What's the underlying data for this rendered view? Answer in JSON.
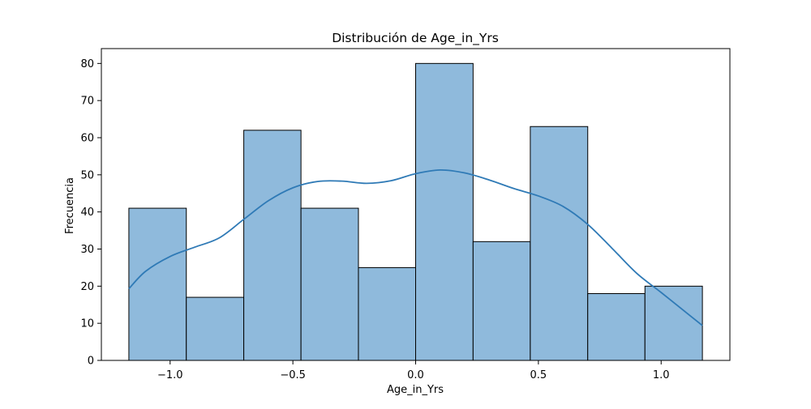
{
  "chart_data": {
    "type": "bar",
    "title": "Distribución de Age_in_Yrs",
    "xlabel": "Age_in_Yrs",
    "ylabel": "Frecuencia",
    "xlim": [
      -1.28,
      1.28
    ],
    "ylim": [
      0,
      84
    ],
    "x_ticks": [
      -1.0,
      -0.5,
      0.0,
      0.5,
      1.0
    ],
    "x_tick_labels": [
      "−1.0",
      "−0.5",
      "0.0",
      "0.5",
      "1.0"
    ],
    "y_ticks": [
      0,
      10,
      20,
      30,
      40,
      50,
      60,
      70,
      80
    ],
    "y_tick_labels": [
      "0",
      "10",
      "20",
      "30",
      "40",
      "50",
      "60",
      "70",
      "80"
    ],
    "bins": [
      {
        "x0": -1.168,
        "x1": -0.934,
        "count": 41
      },
      {
        "x0": -0.934,
        "x1": -0.7,
        "count": 17
      },
      {
        "x0": -0.7,
        "x1": -0.467,
        "count": 62
      },
      {
        "x0": -0.467,
        "x1": -0.233,
        "count": 41
      },
      {
        "x0": -0.233,
        "x1": 0.0,
        "count": 25
      },
      {
        "x0": 0.0,
        "x1": 0.234,
        "count": 80
      },
      {
        "x0": 0.234,
        "x1": 0.467,
        "count": 32
      },
      {
        "x0": 0.467,
        "x1": 0.701,
        "count": 63
      },
      {
        "x0": 0.701,
        "x1": 0.934,
        "count": 18
      },
      {
        "x0": 0.934,
        "x1": 1.168,
        "count": 20
      }
    ],
    "kde": {
      "x": [
        -1.168,
        -1.1,
        -1.0,
        -0.9,
        -0.8,
        -0.7,
        -0.6,
        -0.5,
        -0.4,
        -0.3,
        -0.2,
        -0.1,
        0.0,
        0.1,
        0.2,
        0.3,
        0.4,
        0.5,
        0.6,
        0.7,
        0.8,
        0.9,
        1.0,
        1.1,
        1.168
      ],
      "y": [
        19.3,
        24.0,
        28.0,
        30.5,
        33.0,
        38.0,
        43.0,
        46.5,
        48.2,
        48.3,
        47.7,
        48.4,
        50.3,
        51.3,
        50.5,
        48.6,
        46.3,
        44.3,
        41.5,
        36.7,
        30.2,
        23.5,
        18.3,
        13.0,
        9.4
      ]
    },
    "bar_fill": "#8fbadc",
    "bar_edge": "#000000",
    "kde_color": "#2f7ab6",
    "grid": false,
    "legend": "none"
  }
}
